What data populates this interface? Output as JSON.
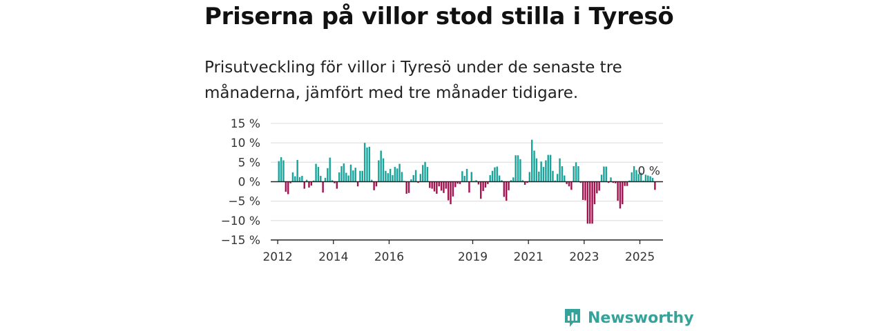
{
  "header": {
    "title": "Priserna på villor stod stilla i Tyresö",
    "subtitle": "Prisutveckling för villor i Tyresö under de senaste tre månaderna, jämfört med tre månader tidigare."
  },
  "brand": {
    "name": "Newsworthy",
    "icon": "bar-chart-logo-icon"
  },
  "colors": {
    "positive": "#1aa39a",
    "negative": "#a3124f",
    "grid": "#e3e3e3",
    "axis": "#222222"
  },
  "chart_data": {
    "type": "bar",
    "title": "Priserna på villor stod stilla i Tyresö",
    "xlabel": "",
    "ylabel": "",
    "ylim": [
      -15,
      15
    ],
    "yticks": [
      15,
      10,
      5,
      0,
      -5,
      -10,
      -15
    ],
    "ytick_labels": [
      "15 %",
      "10 %",
      "5 %",
      "0 %",
      "−5 %",
      "−10 %",
      "−15 %"
    ],
    "xticks": [
      2012,
      2014,
      2016,
      2019,
      2021,
      2023,
      2025
    ],
    "xtick_labels": [
      "2012",
      "2014",
      "2016",
      "2019",
      "2021",
      "2023",
      "2025"
    ],
    "xlim": [
      2011.75,
      2025.83
    ],
    "annotation": {
      "text": "0 %",
      "x": "2025-01",
      "y": 0
    },
    "grid": true,
    "series": [
      {
        "values": [
          {
            "x": "2012-01",
            "y": 5.3
          },
          {
            "x": "2012-02",
            "y": 6.3
          },
          {
            "x": "2012-03",
            "y": 5.5
          },
          {
            "x": "2012-04",
            "y": -2.6
          },
          {
            "x": "2012-05",
            "y": -3.2
          },
          {
            "x": "2012-06",
            "y": -0.4
          },
          {
            "x": "2012-07",
            "y": 2.4
          },
          {
            "x": "2012-08",
            "y": 1.4
          },
          {
            "x": "2012-09",
            "y": 5.6
          },
          {
            "x": "2012-10",
            "y": 1.2
          },
          {
            "x": "2012-11",
            "y": 1.5
          },
          {
            "x": "2012-12",
            "y": -1.8
          },
          {
            "x": "2013-01",
            "y": 0.5
          },
          {
            "x": "2013-02",
            "y": -1.5
          },
          {
            "x": "2013-03",
            "y": -1.0
          },
          {
            "x": "2013-04",
            "y": 0.3
          },
          {
            "x": "2013-05",
            "y": 4.6
          },
          {
            "x": "2013-06",
            "y": 3.8
          },
          {
            "x": "2013-07",
            "y": 1.5
          },
          {
            "x": "2013-08",
            "y": -2.8
          },
          {
            "x": "2013-09",
            "y": 1.0
          },
          {
            "x": "2013-10",
            "y": 3.5
          },
          {
            "x": "2013-11",
            "y": 6.2
          },
          {
            "x": "2013-12",
            "y": 0.4
          },
          {
            "x": "2014-01",
            "y": -0.4
          },
          {
            "x": "2014-02",
            "y": -1.8
          },
          {
            "x": "2014-03",
            "y": 2.4
          },
          {
            "x": "2014-04",
            "y": 4.0
          },
          {
            "x": "2014-05",
            "y": 4.7
          },
          {
            "x": "2014-06",
            "y": 2.3
          },
          {
            "x": "2014-07",
            "y": 1.6
          },
          {
            "x": "2014-08",
            "y": 4.4
          },
          {
            "x": "2014-09",
            "y": 2.9
          },
          {
            "x": "2014-10",
            "y": 3.6
          },
          {
            "x": "2014-11",
            "y": -1.2
          },
          {
            "x": "2014-12",
            "y": 2.8
          },
          {
            "x": "2015-01",
            "y": 2.8
          },
          {
            "x": "2015-02",
            "y": 10.0
          },
          {
            "x": "2015-03",
            "y": 8.8
          },
          {
            "x": "2015-04",
            "y": 9.0
          },
          {
            "x": "2015-05",
            "y": 0.5
          },
          {
            "x": "2015-06",
            "y": -2.2
          },
          {
            "x": "2015-07",
            "y": -1.2
          },
          {
            "x": "2015-08",
            "y": 5.5
          },
          {
            "x": "2015-09",
            "y": 8.0
          },
          {
            "x": "2015-10",
            "y": 6.0
          },
          {
            "x": "2015-11",
            "y": 2.8
          },
          {
            "x": "2015-12",
            "y": 2.2
          },
          {
            "x": "2016-01",
            "y": 3.3
          },
          {
            "x": "2016-02",
            "y": 1.7
          },
          {
            "x": "2016-03",
            "y": 3.8
          },
          {
            "x": "2016-04",
            "y": 3.4
          },
          {
            "x": "2016-05",
            "y": 4.6
          },
          {
            "x": "2016-06",
            "y": 2.5
          },
          {
            "x": "2016-07",
            "y": 0.2
          },
          {
            "x": "2016-08",
            "y": -3.1
          },
          {
            "x": "2016-09",
            "y": -2.9
          },
          {
            "x": "2016-10",
            "y": 0.6
          },
          {
            "x": "2016-11",
            "y": 1.7
          },
          {
            "x": "2016-12",
            "y": 3.0
          },
          {
            "x": "2017-01",
            "y": -0.3
          },
          {
            "x": "2017-02",
            "y": 2.0
          },
          {
            "x": "2017-03",
            "y": 4.3
          },
          {
            "x": "2017-04",
            "y": 5.1
          },
          {
            "x": "2017-05",
            "y": 3.8
          },
          {
            "x": "2017-06",
            "y": -1.6
          },
          {
            "x": "2017-07",
            "y": -1.8
          },
          {
            "x": "2017-08",
            "y": -2.5
          },
          {
            "x": "2017-09",
            "y": -3.1
          },
          {
            "x": "2017-10",
            "y": -1.2
          },
          {
            "x": "2017-11",
            "y": -2.3
          },
          {
            "x": "2017-12",
            "y": -2.9
          },
          {
            "x": "2018-01",
            "y": -1.8
          },
          {
            "x": "2018-02",
            "y": -4.8
          },
          {
            "x": "2018-03",
            "y": -5.8
          },
          {
            "x": "2018-04",
            "y": -3.8
          },
          {
            "x": "2018-05",
            "y": -1.4
          },
          {
            "x": "2018-06",
            "y": -0.5
          },
          {
            "x": "2018-07",
            "y": -0.6
          },
          {
            "x": "2018-08",
            "y": 2.7
          },
          {
            "x": "2018-09",
            "y": 1.5
          },
          {
            "x": "2018-10",
            "y": 3.3
          },
          {
            "x": "2018-11",
            "y": -2.8
          },
          {
            "x": "2018-12",
            "y": 2.5
          },
          {
            "x": "2019-01",
            "y": 0.2
          },
          {
            "x": "2019-02",
            "y": 0.4
          },
          {
            "x": "2019-03",
            "y": -0.7
          },
          {
            "x": "2019-04",
            "y": -4.4
          },
          {
            "x": "2019-05",
            "y": -2.4
          },
          {
            "x": "2019-06",
            "y": -1.5
          },
          {
            "x": "2019-07",
            "y": -0.6
          },
          {
            "x": "2019-08",
            "y": 1.7
          },
          {
            "x": "2019-09",
            "y": 2.8
          },
          {
            "x": "2019-10",
            "y": 3.7
          },
          {
            "x": "2019-11",
            "y": 3.9
          },
          {
            "x": "2019-12",
            "y": 1.6
          },
          {
            "x": "2020-01",
            "y": 0.4
          },
          {
            "x": "2020-02",
            "y": -3.9
          },
          {
            "x": "2020-03",
            "y": -4.9
          },
          {
            "x": "2020-04",
            "y": -2.2
          },
          {
            "x": "2020-05",
            "y": 0.4
          },
          {
            "x": "2020-06",
            "y": 1.1
          },
          {
            "x": "2020-07",
            "y": 6.8
          },
          {
            "x": "2020-08",
            "y": 6.8
          },
          {
            "x": "2020-09",
            "y": 5.8
          },
          {
            "x": "2020-10",
            "y": 0.4
          },
          {
            "x": "2020-11",
            "y": -0.8
          },
          {
            "x": "2020-12",
            "y": -0.3
          },
          {
            "x": "2021-01",
            "y": 2.5
          },
          {
            "x": "2021-02",
            "y": 10.8
          },
          {
            "x": "2021-03",
            "y": 8.0
          },
          {
            "x": "2021-04",
            "y": 6.0
          },
          {
            "x": "2021-05",
            "y": 2.6
          },
          {
            "x": "2021-06",
            "y": 5.2
          },
          {
            "x": "2021-07",
            "y": 3.8
          },
          {
            "x": "2021-08",
            "y": 5.5
          },
          {
            "x": "2021-09",
            "y": 6.9
          },
          {
            "x": "2021-10",
            "y": 6.9
          },
          {
            "x": "2021-11",
            "y": 2.8
          },
          {
            "x": "2021-12",
            "y": 0.3
          },
          {
            "x": "2022-01",
            "y": 2.0
          },
          {
            "x": "2022-02",
            "y": 6.0
          },
          {
            "x": "2022-03",
            "y": 4.0
          },
          {
            "x": "2022-04",
            "y": 1.6
          },
          {
            "x": "2022-05",
            "y": -0.6
          },
          {
            "x": "2022-06",
            "y": -1.2
          },
          {
            "x": "2022-07",
            "y": -2.1
          },
          {
            "x": "2022-08",
            "y": 4.0
          },
          {
            "x": "2022-09",
            "y": 5.0
          },
          {
            "x": "2022-10",
            "y": 4.0
          },
          {
            "x": "2022-11",
            "y": -0.3
          },
          {
            "x": "2022-12",
            "y": -4.7
          },
          {
            "x": "2023-01",
            "y": -4.8
          },
          {
            "x": "2023-02",
            "y": -10.8
          },
          {
            "x": "2023-03",
            "y": -10.8
          },
          {
            "x": "2023-04",
            "y": -10.8
          },
          {
            "x": "2023-05",
            "y": -5.8
          },
          {
            "x": "2023-06",
            "y": -3.0
          },
          {
            "x": "2023-07",
            "y": -2.3
          },
          {
            "x": "2023-08",
            "y": 1.8
          },
          {
            "x": "2023-09",
            "y": 3.9
          },
          {
            "x": "2023-10",
            "y": 3.9
          },
          {
            "x": "2023-11",
            "y": -0.3
          },
          {
            "x": "2023-12",
            "y": 1.1
          },
          {
            "x": "2024-01",
            "y": -0.3
          },
          {
            "x": "2024-02",
            "y": -0.4
          },
          {
            "x": "2024-03",
            "y": -4.9
          },
          {
            "x": "2024-04",
            "y": -6.9
          },
          {
            "x": "2024-05",
            "y": -5.8
          },
          {
            "x": "2024-06",
            "y": -1.1
          },
          {
            "x": "2024-07",
            "y": -1.1
          },
          {
            "x": "2024-08",
            "y": 0.3
          },
          {
            "x": "2024-09",
            "y": 2.4
          },
          {
            "x": "2024-10",
            "y": 4.0
          },
          {
            "x": "2024-11",
            "y": 3.0
          },
          {
            "x": "2024-12",
            "y": 2.0
          },
          {
            "x": "2025-01",
            "y": 2.3
          },
          {
            "x": "2025-02",
            "y": 0.3
          },
          {
            "x": "2025-03",
            "y": 1.8
          },
          {
            "x": "2025-04",
            "y": 1.6
          },
          {
            "x": "2025-05",
            "y": 1.4
          },
          {
            "x": "2025-06",
            "y": 1.0
          },
          {
            "x": "2025-07",
            "y": -2.1
          }
        ]
      }
    ]
  }
}
